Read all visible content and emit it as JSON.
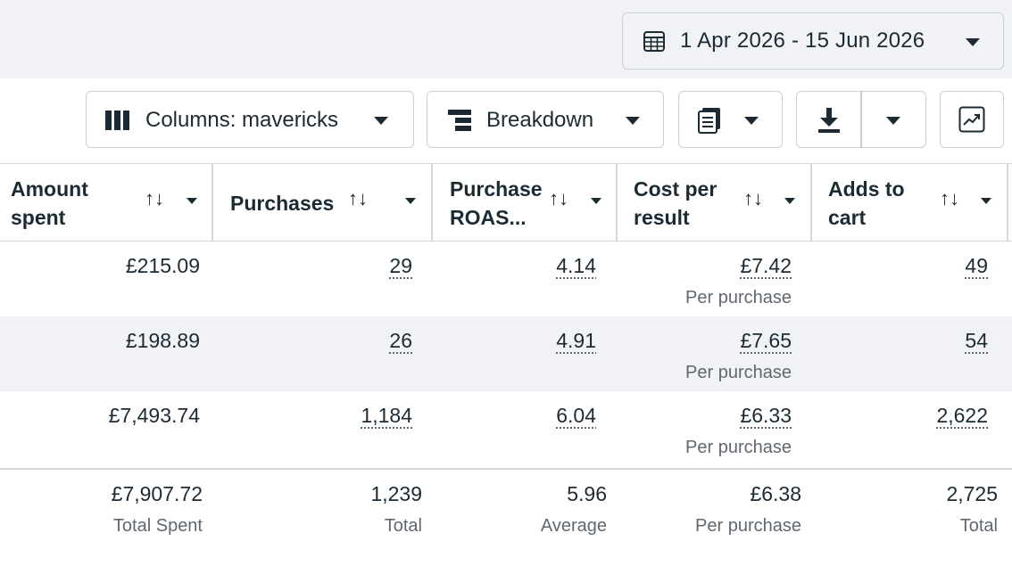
{
  "date_range": {
    "label": "1 Apr 2026 - 15 Jun 2026",
    "icon": "calendar-icon"
  },
  "toolbar": {
    "columns_label": "Columns: mavericks",
    "breakdown_label": "Breakdown",
    "reports_icon": "reports-icon",
    "export_icon": "download-icon",
    "chart_icon": "chart-icon"
  },
  "table": {
    "headers": [
      {
        "line1": "Amount",
        "line2": "spent"
      },
      {
        "line1": "Purchases",
        "line2": ""
      },
      {
        "line1": "Purchase",
        "line2": "ROAS..."
      },
      {
        "line1": "Cost per",
        "line2": "result"
      },
      {
        "line1": "Adds to",
        "line2": "cart"
      }
    ],
    "rows": [
      {
        "amount": "£215.09",
        "purchases": "29",
        "roas": "4.14",
        "cost": "£7.42",
        "cost_sub": "Per purchase",
        "adds": "49"
      },
      {
        "amount": "£198.89",
        "purchases": "26",
        "roas": "4.91",
        "cost": "£7.65",
        "cost_sub": "Per purchase",
        "adds": "54"
      },
      {
        "amount": "£7,493.74",
        "purchases": "1,184",
        "roas": "6.04",
        "cost": "£6.33",
        "cost_sub": "Per purchase",
        "adds": "2,622"
      }
    ],
    "totals": {
      "amount": "£7,907.72",
      "amount_sub": "Total Spent",
      "purchases": "1,239",
      "purchases_sub": "Total",
      "roas": "5.96",
      "roas_sub": "Average",
      "cost": "£6.38",
      "cost_sub": "Per purchase",
      "adds": "2,725",
      "adds_sub": "Total"
    }
  },
  "colors": {
    "text": "#1c2b33",
    "muted": "#606770",
    "border": "#c9cfd6",
    "bg_alt": "#f0f2f5"
  }
}
